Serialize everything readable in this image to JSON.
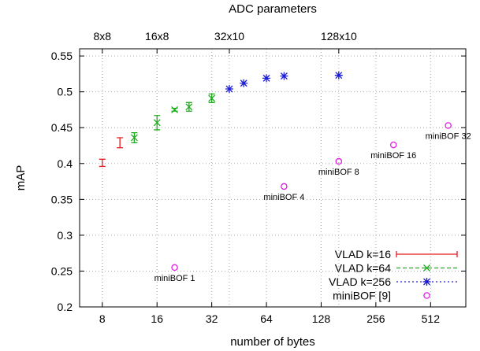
{
  "chart_data": {
    "type": "scatter",
    "title": "",
    "xlabel": "number of bytes",
    "ylabel": "mAP",
    "x2label": "ADC parameters",
    "xscale": "log2",
    "xlim": [
      6,
      800
    ],
    "ylim": [
      0.2,
      0.56
    ],
    "grid": true,
    "legend_position": "bottom-right",
    "xticks": [
      {
        "value": 8,
        "label": "8"
      },
      {
        "value": 16,
        "label": "16"
      },
      {
        "value": 32,
        "label": "32"
      },
      {
        "value": 64,
        "label": "64"
      },
      {
        "value": 128,
        "label": "128"
      },
      {
        "value": 256,
        "label": "256"
      },
      {
        "value": 512,
        "label": "512"
      }
    ],
    "x2ticks": [
      {
        "value": 8,
        "label": "8x8"
      },
      {
        "value": 16,
        "label": "16x8"
      },
      {
        "value": 40,
        "label": "32x10"
      },
      {
        "value": 160,
        "label": "128x10"
      }
    ],
    "yticks": [
      {
        "value": 0.2,
        "label": "0.2"
      },
      {
        "value": 0.25,
        "label": "0.25"
      },
      {
        "value": 0.3,
        "label": "0.3"
      },
      {
        "value": 0.35,
        "label": "0.35"
      },
      {
        "value": 0.4,
        "label": "0.4"
      },
      {
        "value": 0.45,
        "label": "0.45"
      },
      {
        "value": 0.5,
        "label": "0.5"
      },
      {
        "value": 0.55,
        "label": "0.55"
      }
    ],
    "series": [
      {
        "name": "VLAD k=16",
        "color": "#e41a1c",
        "marker": "errorbar",
        "points": [
          {
            "x": 8,
            "y": 0.401,
            "err": 0.005
          },
          {
            "x": 10,
            "y": 0.429,
            "err": 0.007
          }
        ]
      },
      {
        "name": "VLAD k=64",
        "color": "#1faa1f",
        "marker": "cross",
        "points": [
          {
            "x": 12,
            "y": 0.436,
            "err": 0.007
          },
          {
            "x": 16,
            "y": 0.457,
            "err": 0.01
          },
          {
            "x": 20,
            "y": 0.475,
            "err": 0.002
          },
          {
            "x": 24,
            "y": 0.479,
            "err": 0.006
          },
          {
            "x": 32,
            "y": 0.491,
            "err": 0.006
          }
        ]
      },
      {
        "name": "VLAD k=256",
        "color": "#1c1cd8",
        "marker": "star",
        "points": [
          {
            "x": 40,
            "y": 0.504
          },
          {
            "x": 48,
            "y": 0.512
          },
          {
            "x": 64,
            "y": 0.519
          },
          {
            "x": 80,
            "y": 0.522
          },
          {
            "x": 160,
            "y": 0.523
          }
        ]
      },
      {
        "name": "miniBOF [9]",
        "color": "#e020e0",
        "marker": "circle",
        "points": [
          {
            "x": 20,
            "y": 0.255,
            "label": "miniBOF 1"
          },
          {
            "x": 80,
            "y": 0.368,
            "label": "miniBOF 4"
          },
          {
            "x": 160,
            "y": 0.403,
            "label": "miniBOF 8"
          },
          {
            "x": 320,
            "y": 0.426,
            "label": "miniBOF 16"
          },
          {
            "x": 640,
            "y": 0.453,
            "label": "miniBOF 32"
          }
        ]
      }
    ]
  }
}
